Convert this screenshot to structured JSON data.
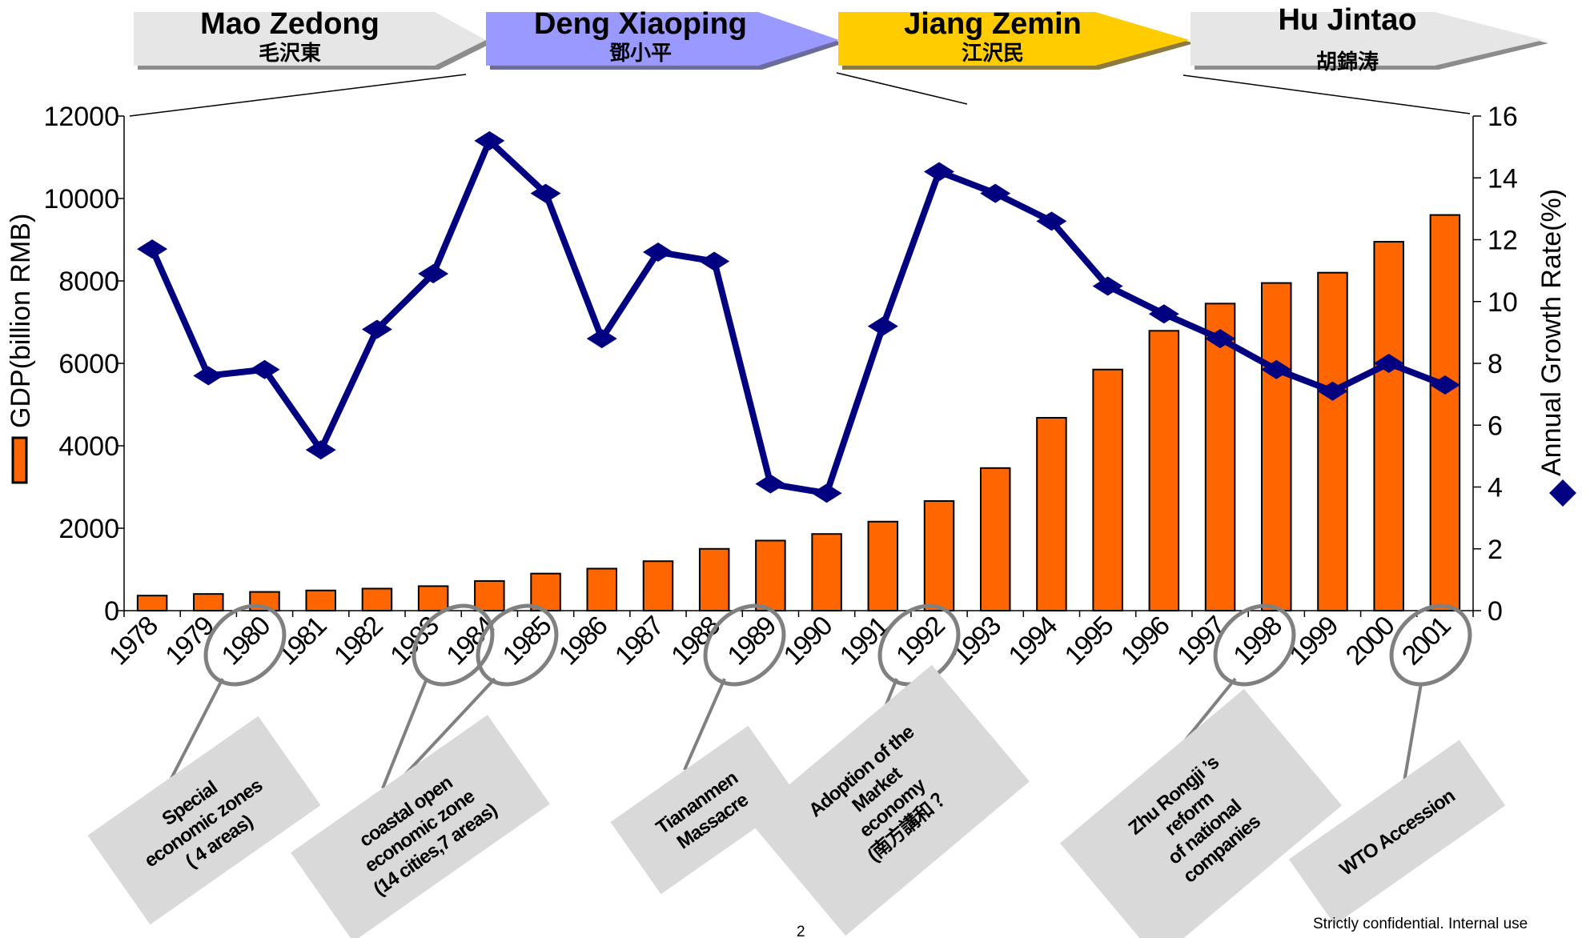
{
  "leaders": [
    {
      "name": "Mao Zedong",
      "name_cn": "毛沢東",
      "color": "#e6e6e6"
    },
    {
      "name": "Deng Xiaoping",
      "name_cn": "鄧小平",
      "color": "#9999ff"
    },
    {
      "name": "Jiang Zemin",
      "name_cn": "江沢民",
      "color": "#ffcc00"
    },
    {
      "name": "Hu Jintao",
      "name_cn": "胡錦涛",
      "color": "#e6e6e6"
    }
  ],
  "chart_data": {
    "type": "bar",
    "categories": [
      "1978",
      "1979",
      "1980",
      "1981",
      "1982",
      "1983",
      "1984",
      "1985",
      "1986",
      "1987",
      "1988",
      "1989",
      "1990",
      "1991",
      "1992",
      "1993",
      "1994",
      "1995",
      "1996",
      "1997",
      "1998",
      "1999",
      "2000",
      "2001"
    ],
    "series": [
      {
        "name": "GDP(billion RMB)",
        "type": "bar",
        "axis": "left",
        "color": "#ff6600",
        "values": [
          365,
          405,
          455,
          490,
          535,
          595,
          720,
          900,
          1020,
          1200,
          1500,
          1700,
          1860,
          2160,
          2660,
          3460,
          4680,
          5850,
          6790,
          7450,
          7950,
          8200,
          8950,
          9600
        ]
      },
      {
        "name": "Annual Growth Rate(%)",
        "type": "line",
        "axis": "right",
        "color": "#000080",
        "values": [
          11.7,
          7.6,
          7.8,
          5.2,
          9.1,
          10.9,
          15.2,
          13.5,
          8.8,
          11.6,
          11.3,
          4.1,
          3.8,
          9.2,
          14.2,
          13.5,
          12.6,
          10.5,
          9.6,
          8.8,
          7.8,
          7.1,
          8.0,
          7.3
        ]
      }
    ],
    "ylabel_left": "GDP(billion RMB)",
    "ylabel_right": "Annual Growth Rate(%)",
    "ylim_left": [
      0,
      12000
    ],
    "ylim_right": [
      0,
      16
    ],
    "yticks_left": [
      "0",
      "2000",
      "4000",
      "6000",
      "8000",
      "10000",
      "12000"
    ],
    "yticks_right": [
      "0",
      "2",
      "4",
      "6",
      "8",
      "10",
      "12",
      "14",
      "16"
    ],
    "grid": false
  },
  "annotations": [
    {
      "years": [
        "1980"
      ],
      "lines": [
        "Special",
        "economic zones",
        "( 4 areas)"
      ]
    },
    {
      "years": [
        "1984",
        "1985"
      ],
      "lines": [
        "coastal open",
        "economic zone",
        "(14 cities,7 areas)"
      ]
    },
    {
      "years": [
        "1989"
      ],
      "lines": [
        "Tiananmen",
        "Massacre"
      ]
    },
    {
      "years": [
        "1992"
      ],
      "lines": [
        "Adoption of the",
        "Market",
        "economy",
        "(南方講和 ？"
      ]
    },
    {
      "years": [
        "1998"
      ],
      "lines": [
        "Zhu Rongji ’s",
        "reform",
        "of national",
        "companies"
      ]
    },
    {
      "years": [
        "2001"
      ],
      "lines": [
        "WTO Accession"
      ]
    }
  ],
  "footer": {
    "confidential": "Strictly confidential. Internal use",
    "page": "2"
  }
}
